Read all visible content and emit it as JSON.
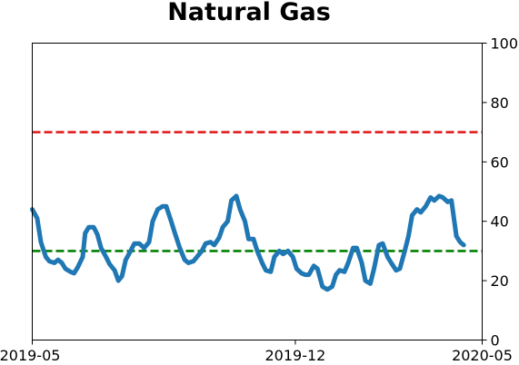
{
  "chart_data": {
    "type": "line",
    "title": "Natural Gas",
    "xlabel": "",
    "ylabel": "",
    "x_ticks": [
      "2019-05",
      "2019-12",
      "2020-05"
    ],
    "y_ticks": [
      0,
      20,
      40,
      60,
      80,
      100
    ],
    "ylim": [
      0,
      100
    ],
    "y_axis_side": "right",
    "grid": false,
    "legend": "none",
    "reference_lines": [
      {
        "y": 70,
        "color": "#e31a1c",
        "style": "dashed"
      },
      {
        "y": 30,
        "color": "#008000",
        "style": "dashed"
      }
    ],
    "series": [
      {
        "color": "#1f77b4",
        "points": [
          [
            "2019-05-01",
            44
          ],
          [
            "2019-05-05",
            41
          ],
          [
            "2019-05-08",
            33
          ],
          [
            "2019-05-12",
            28
          ],
          [
            "2019-05-15",
            26.5
          ],
          [
            "2019-05-19",
            26
          ],
          [
            "2019-05-22",
            27
          ],
          [
            "2019-05-25",
            26
          ],
          [
            "2019-05-28",
            24
          ],
          [
            "2019-06-01",
            23
          ],
          [
            "2019-06-04",
            22.5
          ],
          [
            "2019-06-07",
            24.5
          ],
          [
            "2019-06-11",
            28
          ],
          [
            "2019-06-13",
            36
          ],
          [
            "2019-06-16",
            38
          ],
          [
            "2019-06-20",
            38
          ],
          [
            "2019-06-23",
            35.5
          ],
          [
            "2019-06-26",
            31
          ],
          [
            "2019-06-30",
            28
          ],
          [
            "2019-07-03",
            25.5
          ],
          [
            "2019-07-07",
            23.5
          ],
          [
            "2019-07-10",
            20
          ],
          [
            "2019-07-13",
            21.5
          ],
          [
            "2019-07-16",
            27
          ],
          [
            "2019-07-20",
            30
          ],
          [
            "2019-07-23",
            32.5
          ],
          [
            "2019-07-27",
            32.5
          ],
          [
            "2019-07-31",
            31
          ],
          [
            "2019-08-04",
            33
          ],
          [
            "2019-08-07",
            40
          ],
          [
            "2019-08-11",
            44
          ],
          [
            "2019-08-15",
            45
          ],
          [
            "2019-08-18",
            45
          ],
          [
            "2019-08-22",
            40
          ],
          [
            "2019-08-25",
            36
          ],
          [
            "2019-08-29",
            31
          ],
          [
            "2019-09-02",
            27
          ],
          [
            "2019-09-05",
            26
          ],
          [
            "2019-09-09",
            26.5
          ],
          [
            "2019-09-12",
            28
          ],
          [
            "2019-09-16",
            30
          ],
          [
            "2019-09-19",
            32.5
          ],
          [
            "2019-09-23",
            33
          ],
          [
            "2019-09-26",
            32
          ],
          [
            "2019-09-30",
            34.5
          ],
          [
            "2019-10-03",
            38
          ],
          [
            "2019-10-07",
            40
          ],
          [
            "2019-10-10",
            47
          ],
          [
            "2019-10-14",
            48.5
          ],
          [
            "2019-10-17",
            44
          ],
          [
            "2019-10-21",
            40
          ],
          [
            "2019-10-24",
            34
          ],
          [
            "2019-10-28",
            34
          ],
          [
            "2019-10-31",
            30
          ],
          [
            "2019-11-04",
            26
          ],
          [
            "2019-11-07",
            23.5
          ],
          [
            "2019-11-11",
            23
          ],
          [
            "2019-11-14",
            28
          ],
          [
            "2019-11-18",
            30
          ],
          [
            "2019-11-21",
            29
          ],
          [
            "2019-11-25",
            30
          ],
          [
            "2019-11-29",
            28
          ],
          [
            "2019-12-02",
            24
          ],
          [
            "2019-12-06",
            22.5
          ],
          [
            "2019-12-09",
            22
          ],
          [
            "2019-12-12",
            22
          ],
          [
            "2019-12-16",
            25
          ],
          [
            "2019-12-19",
            24
          ],
          [
            "2019-12-23",
            18
          ],
          [
            "2019-12-27",
            17
          ],
          [
            "2019-12-31",
            18
          ],
          [
            "2020-01-03",
            22
          ],
          [
            "2020-01-06",
            23.5
          ],
          [
            "2020-01-10",
            23
          ],
          [
            "2020-01-13",
            26
          ],
          [
            "2020-01-17",
            31
          ],
          [
            "2020-01-20",
            31
          ],
          [
            "2020-01-24",
            26
          ],
          [
            "2020-01-27",
            20
          ],
          [
            "2020-01-31",
            19
          ],
          [
            "2020-02-03",
            24
          ],
          [
            "2020-02-07",
            32
          ],
          [
            "2020-02-10",
            32.5
          ],
          [
            "2020-02-14",
            28
          ],
          [
            "2020-02-17",
            26
          ],
          [
            "2020-02-21",
            23.5
          ],
          [
            "2020-02-24",
            24
          ],
          [
            "2020-02-28",
            30
          ],
          [
            "2020-03-02",
            35
          ],
          [
            "2020-03-05",
            42
          ],
          [
            "2020-03-09",
            44
          ],
          [
            "2020-03-12",
            43
          ],
          [
            "2020-03-16",
            45
          ],
          [
            "2020-03-20",
            48
          ],
          [
            "2020-03-23",
            47
          ],
          [
            "2020-03-27",
            48.5
          ],
          [
            "2020-03-30",
            48
          ],
          [
            "2020-04-03",
            46.5
          ],
          [
            "2020-04-06",
            47
          ],
          [
            "2020-04-10",
            35
          ],
          [
            "2020-04-13",
            33
          ],
          [
            "2020-04-16",
            32
          ]
        ]
      }
    ]
  }
}
